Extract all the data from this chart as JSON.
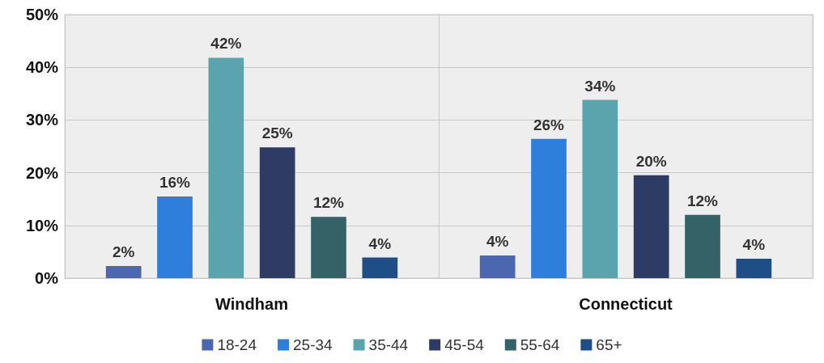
{
  "chart_data": {
    "type": "bar",
    "categories": [
      "Windham",
      "Connecticut"
    ],
    "series": [
      {
        "name": "18-24",
        "color": "#4a67b0",
        "values": [
          2.3,
          4.3
        ],
        "value_labels": [
          "2%",
          "4%"
        ]
      },
      {
        "name": "25-34",
        "color": "#2e7fdb",
        "values": [
          15.5,
          26.4
        ],
        "value_labels": [
          "16%",
          "26%"
        ]
      },
      {
        "name": "35-44",
        "color": "#5ba3ad",
        "values": [
          41.8,
          33.8
        ],
        "value_labels": [
          "42%",
          "34%"
        ]
      },
      {
        "name": "45-54",
        "color": "#2e3b65",
        "values": [
          24.8,
          19.5
        ],
        "value_labels": [
          "25%",
          "20%"
        ]
      },
      {
        "name": "55-64",
        "color": "#346266",
        "values": [
          11.6,
          12.0
        ],
        "value_labels": [
          "12%",
          "12%"
        ]
      },
      {
        "name": "65+",
        "color": "#1f4e86",
        "values": [
          3.9,
          3.7
        ],
        "value_labels": [
          "4%",
          "4%"
        ]
      }
    ],
    "ylim": [
      0,
      50
    ],
    "yticks": [
      {
        "value": 0,
        "label": "0%"
      },
      {
        "value": 10,
        "label": "10%"
      },
      {
        "value": 20,
        "label": "20%"
      },
      {
        "value": 30,
        "label": "30%"
      },
      {
        "value": 40,
        "label": "40%"
      },
      {
        "value": 50,
        "label": "50%"
      }
    ],
    "grid": true,
    "legend": "bottom"
  }
}
